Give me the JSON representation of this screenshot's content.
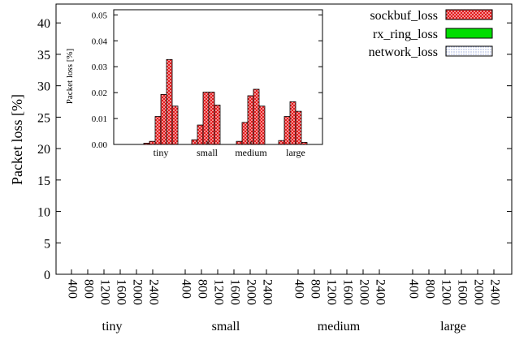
{
  "colors": {
    "sockbuf": "#e41a1c",
    "rx_ring": "#00dd00",
    "network": "#b7c4e8",
    "axis": "#000000"
  },
  "chart_data": [
    {
      "type": "bar",
      "ylabel": "Packet loss [%]",
      "ylim": [
        0,
        43
      ],
      "yticks": [
        "0",
        "5",
        "10",
        "15",
        "20",
        "25",
        "30",
        "35",
        "40"
      ],
      "groups": [
        "tiny",
        "small",
        "medium",
        "large"
      ],
      "x_categories": [
        "400",
        "800",
        "1200",
        "1600",
        "2000",
        "2400"
      ],
      "legend": {
        "placement": "top-right",
        "entries": [
          "sockbuf_loss",
          "rx_ring_loss",
          "network_loss"
        ]
      },
      "series": [
        {
          "name": "sockbuf_loss",
          "values": [
            [
              0,
              0,
              0,
              0,
              0,
              0
            ],
            [
              0,
              0,
              0,
              0,
              0,
              0
            ],
            [
              0,
              0,
              0,
              0,
              0,
              0
            ],
            [
              0,
              0,
              0,
              0,
              0,
              0
            ]
          ]
        },
        {
          "name": "rx_ring_loss",
          "values": [
            [
              0,
              0,
              0,
              0,
              0,
              0
            ],
            [
              0,
              0,
              0,
              0,
              0,
              0
            ],
            [
              0,
              0,
              0,
              0,
              0,
              0
            ],
            [
              0,
              0,
              0,
              0,
              0,
              0
            ]
          ]
        },
        {
          "name": "network_loss",
          "values": [
            [
              0,
              0,
              0,
              0,
              0,
              0
            ],
            [
              0,
              0,
              0,
              0,
              0,
              0
            ],
            [
              0,
              0,
              0,
              0,
              0,
              0
            ],
            [
              0,
              0,
              0,
              0,
              0,
              0
            ]
          ]
        }
      ],
      "grid": false
    },
    {
      "type": "bar",
      "ylabel": "Packet loss [%]",
      "ylim": [
        0,
        0.052
      ],
      "yticks": [
        "0.00",
        "0.01",
        "0.02",
        "0.03",
        "0.04",
        "0.05"
      ],
      "groups": [
        "tiny",
        "small",
        "medium",
        "large"
      ],
      "series": [
        {
          "name": "sockbuf_loss",
          "values": [
            [
              0,
              0.0005,
              0.0012,
              0.0108,
              0.0193,
              0.0328,
              0.0148
            ],
            [
              0.0018,
              0.0075,
              0.0202,
              0.0202,
              0.0152
            ],
            [
              0.0012,
              0.0085,
              0.0188,
              0.0213,
              0.0148
            ],
            [
              0.0015,
              0.0108,
              0.0165,
              0.0128,
              0.0008
            ]
          ]
        }
      ],
      "grid": false
    }
  ]
}
